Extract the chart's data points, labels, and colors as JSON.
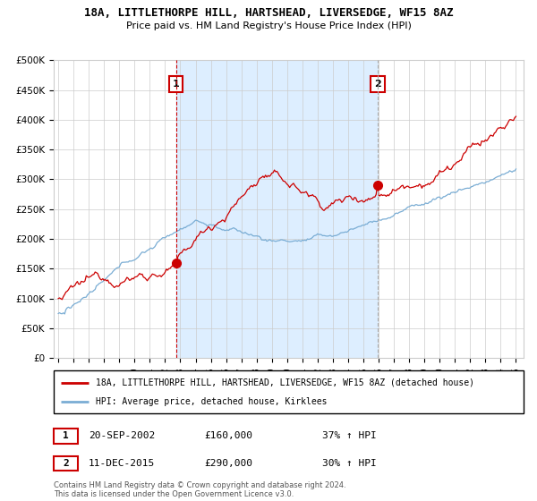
{
  "title": "18A, LITTLETHORPE HILL, HARTSHEAD, LIVERSEDGE, WF15 8AZ",
  "subtitle": "Price paid vs. HM Land Registry's House Price Index (HPI)",
  "ylim": [
    0,
    500000
  ],
  "yticks": [
    0,
    50000,
    100000,
    150000,
    200000,
    250000,
    300000,
    350000,
    400000,
    450000,
    500000
  ],
  "ytick_labels": [
    "£0",
    "£50K",
    "£100K",
    "£150K",
    "£200K",
    "£250K",
    "£300K",
    "£350K",
    "£400K",
    "£450K",
    "£500K"
  ],
  "red_line_label": "18A, LITTLETHORPE HILL, HARTSHEAD, LIVERSEDGE, WF15 8AZ (detached house)",
  "blue_line_label": "HPI: Average price, detached house, Kirklees",
  "marker1_year": 2002.72,
  "marker1_value": 160000,
  "marker2_year": 2015.94,
  "marker2_value": 290000,
  "copyright": "Contains HM Land Registry data © Crown copyright and database right 2024.\nThis data is licensed under the Open Government Licence v3.0.",
  "red_color": "#cc0000",
  "blue_color": "#7aadd4",
  "shade_color": "#ddeeff",
  "grid_color": "#cccccc",
  "background_color": "#ffffff"
}
